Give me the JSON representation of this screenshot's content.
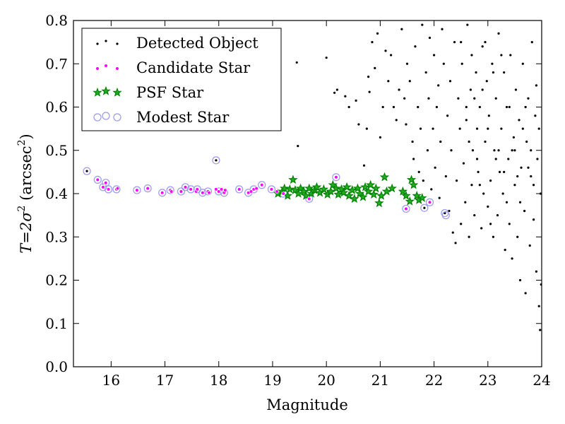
{
  "chart_data": {
    "type": "scatter",
    "xlabel": "Magnitude",
    "ylabel_math": "T=2σ",
    "ylabel_sup": "2",
    "ylabel_unit_pre": " (arcsec",
    "ylabel_unit_sup": "2",
    "ylabel_unit_post": ")",
    "xlim": [
      15.3,
      24.0
    ],
    "ylim": [
      0.0,
      0.8
    ],
    "x_ticks": [
      16,
      17,
      18,
      19,
      20,
      21,
      22,
      23,
      24
    ],
    "y_ticks": [
      0.0,
      0.1,
      0.2,
      0.3,
      0.4,
      0.5,
      0.6,
      0.7,
      0.8
    ],
    "x_tick_labels": [
      "16",
      "17",
      "18",
      "19",
      "20",
      "21",
      "22",
      "23",
      "24"
    ],
    "y_tick_labels": [
      "0.0",
      "0.1",
      "0.2",
      "0.3",
      "0.4",
      "0.5",
      "0.6",
      "0.7",
      "0.8"
    ],
    "grid": false,
    "legend_position": "top-left",
    "colors": {
      "detected": "#000000",
      "candidate": "#ff00ff",
      "psf": "#008000",
      "modest": "#9999ee"
    },
    "series": [
      {
        "name": "Detected Object",
        "marker": "dot",
        "points": [
          [
            15.55,
            0.452
          ],
          [
            17.95,
            0.477
          ],
          [
            19.45,
            0.703
          ],
          [
            19.47,
            0.51
          ],
          [
            20.0,
            0.714
          ],
          [
            20.15,
            0.633
          ],
          [
            20.2,
            0.64
          ],
          [
            20.35,
            0.625
          ],
          [
            20.42,
            0.6
          ],
          [
            20.55,
            0.615
          ],
          [
            20.6,
            0.56
          ],
          [
            20.7,
            0.465
          ],
          [
            20.75,
            0.55
          ],
          [
            20.78,
            0.67
          ],
          [
            20.8,
            0.635
          ],
          [
            20.85,
            0.75
          ],
          [
            20.9,
            0.69
          ],
          [
            20.95,
            0.77
          ],
          [
            21.0,
            0.53
          ],
          [
            21.05,
            0.6
          ],
          [
            21.1,
            0.73
          ],
          [
            21.15,
            0.66
          ],
          [
            21.2,
            0.72
          ],
          [
            21.25,
            0.6
          ],
          [
            21.3,
            0.57
          ],
          [
            21.35,
            0.64
          ],
          [
            21.4,
            0.78
          ],
          [
            21.45,
            0.62
          ],
          [
            21.48,
            0.56
          ],
          [
            21.5,
            0.7
          ],
          [
            21.55,
            0.66
          ],
          [
            21.6,
            0.52
          ],
          [
            21.62,
            0.48
          ],
          [
            21.65,
            0.74
          ],
          [
            21.7,
            0.6
          ],
          [
            21.72,
            0.45
          ],
          [
            21.75,
            0.55
          ],
          [
            21.78,
            0.79
          ],
          [
            21.8,
            0.43
          ],
          [
            21.82,
            0.367
          ],
          [
            21.85,
            0.68
          ],
          [
            21.88,
            0.5
          ],
          [
            21.9,
            0.62
          ],
          [
            21.92,
            0.76
          ],
          [
            21.95,
            0.41
          ],
          [
            21.98,
            0.55
          ],
          [
            22.0,
            0.72
          ],
          [
            22.02,
            0.46
          ],
          [
            22.05,
            0.6
          ],
          [
            22.08,
            0.65
          ],
          [
            22.1,
            0.39
          ],
          [
            22.12,
            0.52
          ],
          [
            22.15,
            0.78
          ],
          [
            22.18,
            0.7
          ],
          [
            22.2,
            0.355
          ],
          [
            22.22,
            0.44
          ],
          [
            22.25,
            0.58
          ],
          [
            22.28,
            0.36
          ],
          [
            22.3,
            0.66
          ],
          [
            22.32,
            0.5
          ],
          [
            22.35,
            0.31
          ],
          [
            22.38,
            0.75
          ],
          [
            22.4,
            0.286
          ],
          [
            22.42,
            0.43
          ],
          [
            22.45,
            0.62
          ],
          [
            22.48,
            0.55
          ],
          [
            22.5,
            0.33
          ],
          [
            22.52,
            0.7
          ],
          [
            22.55,
            0.47
          ],
          [
            22.58,
            0.38
          ],
          [
            22.6,
            0.57
          ],
          [
            22.62,
            0.79
          ],
          [
            22.65,
            0.3
          ],
          [
            22.68,
            0.64
          ],
          [
            22.7,
            0.42
          ],
          [
            22.72,
            0.5
          ],
          [
            22.75,
            0.35
          ],
          [
            22.78,
            0.68
          ],
          [
            22.8,
            0.55
          ],
          [
            22.82,
            0.45
          ],
          [
            22.85,
            0.6
          ],
          [
            22.88,
            0.32
          ],
          [
            22.9,
            0.74
          ],
          [
            22.92,
            0.4
          ],
          [
            22.95,
            0.52
          ],
          [
            22.98,
            0.66
          ],
          [
            23.0,
            0.37
          ],
          [
            23.02,
            0.58
          ],
          [
            23.05,
            0.43
          ],
          [
            23.08,
            0.7
          ],
          [
            23.1,
            0.3
          ],
          [
            23.12,
            0.5
          ],
          [
            23.15,
            0.62
          ],
          [
            23.18,
            0.35
          ],
          [
            23.2,
            0.77
          ],
          [
            23.22,
            0.45
          ],
          [
            23.25,
            0.55
          ],
          [
            23.28,
            0.4
          ],
          [
            23.3,
            0.68
          ],
          [
            23.32,
            0.27
          ],
          [
            23.35,
            0.6
          ],
          [
            23.38,
            0.48
          ],
          [
            23.4,
            0.33
          ],
          [
            23.42,
            0.72
          ],
          [
            23.45,
            0.25
          ],
          [
            23.48,
            0.53
          ],
          [
            23.5,
            0.42
          ],
          [
            23.52,
            0.64
          ],
          [
            23.55,
            0.3
          ],
          [
            23.58,
            0.57
          ],
          [
            23.6,
            0.2
          ],
          [
            23.62,
            0.46
          ],
          [
            23.65,
            0.7
          ],
          [
            23.68,
            0.36
          ],
          [
            23.7,
            0.17
          ],
          [
            23.72,
            0.52
          ],
          [
            23.75,
            0.62
          ],
          [
            23.78,
            0.28
          ],
          [
            23.8,
            0.44
          ],
          [
            23.82,
            0.75
          ],
          [
            23.85,
            0.34
          ],
          [
            23.88,
            0.58
          ],
          [
            23.9,
            0.22
          ],
          [
            23.92,
            0.48
          ],
          [
            23.95,
            0.14
          ],
          [
            23.97,
            0.085
          ],
          [
            23.98,
            0.4
          ],
          [
            23.99,
            0.19
          ],
          [
            22.6,
            0.6
          ],
          [
            22.7,
            0.72
          ],
          [
            22.8,
            0.48
          ],
          [
            22.9,
            0.64
          ],
          [
            23.0,
            0.55
          ],
          [
            23.1,
            0.68
          ],
          [
            23.2,
            0.5
          ],
          [
            23.3,
            0.45
          ],
          [
            23.4,
            0.6
          ],
          [
            23.5,
            0.5
          ],
          [
            23.6,
            0.38
          ],
          [
            23.7,
            0.6
          ],
          [
            23.8,
            0.5
          ],
          [
            23.9,
            0.65
          ],
          [
            22.5,
            0.75
          ],
          [
            22.65,
            0.52
          ],
          [
            22.75,
            0.62
          ],
          [
            22.85,
            0.42
          ],
          [
            22.95,
            0.75
          ],
          [
            23.05,
            0.33
          ],
          [
            23.15,
            0.48
          ],
          [
            23.25,
            0.72
          ],
          [
            23.35,
            0.38
          ],
          [
            23.45,
            0.5
          ],
          [
            23.55,
            0.44
          ],
          [
            23.65,
            0.55
          ],
          [
            23.75,
            0.46
          ],
          [
            23.85,
            0.42
          ],
          [
            23.95,
            0.55
          ]
        ]
      },
      {
        "name": "Candidate Star",
        "marker": "small-circle",
        "points": [
          [
            15.75,
            0.432
          ],
          [
            15.85,
            0.415
          ],
          [
            15.9,
            0.425
          ],
          [
            15.95,
            0.41
          ],
          [
            16.1,
            0.41
          ],
          [
            16.12,
            0.412
          ],
          [
            16.48,
            0.408
          ],
          [
            16.68,
            0.412
          ],
          [
            16.95,
            0.402
          ],
          [
            17.1,
            0.408
          ],
          [
            17.12,
            0.405
          ],
          [
            17.3,
            0.405
          ],
          [
            17.38,
            0.415
          ],
          [
            17.48,
            0.41
          ],
          [
            17.58,
            0.405
          ],
          [
            17.6,
            0.41
          ],
          [
            17.7,
            0.402
          ],
          [
            17.8,
            0.405
          ],
          [
            17.82,
            0.402
          ],
          [
            17.95,
            0.41
          ],
          [
            18.0,
            0.405
          ],
          [
            18.05,
            0.41
          ],
          [
            18.1,
            0.402
          ],
          [
            18.12,
            0.408
          ],
          [
            18.38,
            0.41
          ],
          [
            18.55,
            0.402
          ],
          [
            18.6,
            0.405
          ],
          [
            18.65,
            0.41
          ],
          [
            18.7,
            0.412
          ],
          [
            18.8,
            0.42
          ],
          [
            18.98,
            0.41
          ],
          [
            19.08,
            0.405
          ],
          [
            19.2,
            0.4
          ],
          [
            19.68,
            0.388
          ],
          [
            20.18,
            0.438
          ],
          [
            21.48,
            0.365
          ],
          [
            21.92,
            0.38
          ]
        ]
      },
      {
        "name": "PSF Star",
        "marker": "star",
        "points": [
          [
            19.1,
            0.4
          ],
          [
            19.18,
            0.405
          ],
          [
            19.22,
            0.412
          ],
          [
            19.28,
            0.395
          ],
          [
            19.32,
            0.41
          ],
          [
            19.38,
            0.432
          ],
          [
            19.42,
            0.408
          ],
          [
            19.48,
            0.4
          ],
          [
            19.52,
            0.412
          ],
          [
            19.58,
            0.405
          ],
          [
            19.62,
            0.395
          ],
          [
            19.68,
            0.412
          ],
          [
            19.72,
            0.4
          ],
          [
            19.78,
            0.408
          ],
          [
            19.82,
            0.415
          ],
          [
            19.88,
            0.402
          ],
          [
            19.95,
            0.41
          ],
          [
            20.02,
            0.398
          ],
          [
            20.08,
            0.405
          ],
          [
            20.12,
            0.42
          ],
          [
            20.18,
            0.412
          ],
          [
            20.22,
            0.398
          ],
          [
            20.28,
            0.41
          ],
          [
            20.32,
            0.402
          ],
          [
            20.38,
            0.415
          ],
          [
            20.42,
            0.395
          ],
          [
            20.48,
            0.408
          ],
          [
            20.52,
            0.388
          ],
          [
            20.58,
            0.412
          ],
          [
            20.62,
            0.4
          ],
          [
            20.68,
            0.392
          ],
          [
            20.72,
            0.415
          ],
          [
            20.78,
            0.405
          ],
          [
            20.82,
            0.42
          ],
          [
            20.88,
            0.398
          ],
          [
            20.92,
            0.412
          ],
          [
            20.98,
            0.378
          ],
          [
            21.02,
            0.395
          ],
          [
            21.08,
            0.438
          ],
          [
            21.12,
            0.405
          ],
          [
            21.22,
            0.412
          ],
          [
            21.42,
            0.405
          ],
          [
            21.48,
            0.395
          ],
          [
            21.55,
            0.382
          ],
          [
            21.58,
            0.432
          ],
          [
            21.62,
            0.42
          ],
          [
            21.68,
            0.395
          ],
          [
            21.72,
            0.385
          ],
          [
            21.78,
            0.39
          ]
        ]
      },
      {
        "name": "Modest Star",
        "marker": "open-circle",
        "points": [
          [
            15.55,
            0.452
          ],
          [
            15.75,
            0.432
          ],
          [
            15.85,
            0.415
          ],
          [
            15.9,
            0.425
          ],
          [
            15.95,
            0.41
          ],
          [
            16.1,
            0.41
          ],
          [
            16.48,
            0.408
          ],
          [
            16.68,
            0.412
          ],
          [
            16.95,
            0.402
          ],
          [
            17.1,
            0.408
          ],
          [
            17.3,
            0.405
          ],
          [
            17.38,
            0.415
          ],
          [
            17.48,
            0.41
          ],
          [
            17.6,
            0.41
          ],
          [
            17.7,
            0.402
          ],
          [
            17.8,
            0.405
          ],
          [
            17.95,
            0.477
          ],
          [
            18.0,
            0.405
          ],
          [
            18.1,
            0.402
          ],
          [
            18.38,
            0.41
          ],
          [
            18.55,
            0.402
          ],
          [
            18.65,
            0.41
          ],
          [
            18.8,
            0.42
          ],
          [
            18.98,
            0.41
          ],
          [
            19.2,
            0.4
          ],
          [
            19.68,
            0.388
          ],
          [
            20.18,
            0.438
          ],
          [
            21.48,
            0.365
          ],
          [
            21.82,
            0.367
          ],
          [
            21.92,
            0.38
          ],
          [
            22.2,
            0.355
          ],
          [
            22.22,
            0.35
          ]
        ]
      }
    ]
  },
  "legend": {
    "items": [
      {
        "label": "Detected Object",
        "marker": "dot"
      },
      {
        "label": "Candidate Star",
        "marker": "small-circle"
      },
      {
        "label": "PSF Star",
        "marker": "star"
      },
      {
        "label": "Modest Star",
        "marker": "open-circle"
      }
    ]
  }
}
